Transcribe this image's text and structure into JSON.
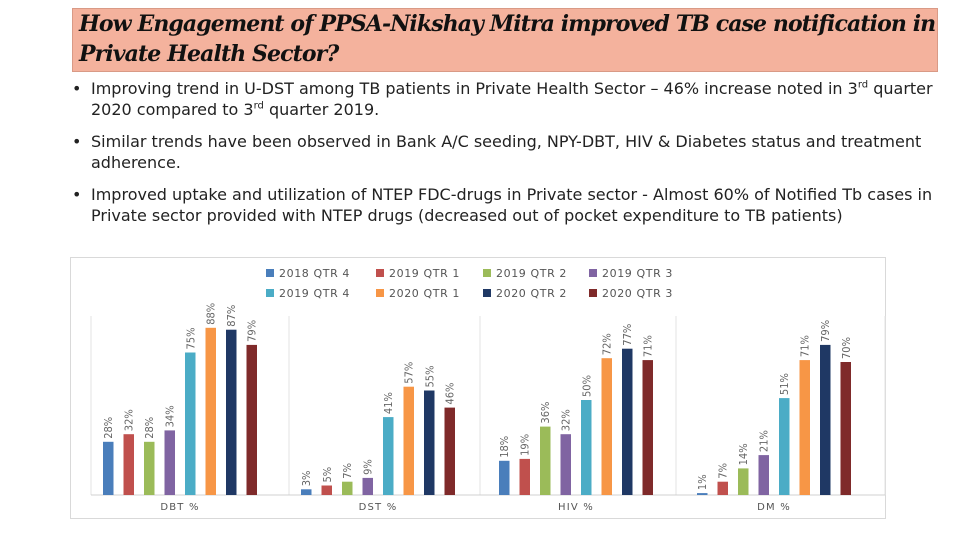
{
  "slide": {
    "title_line1": "How Engagement of PPSA-Nikshay Mitra improved TB case notification in",
    "title_line2": "Private Health Sector?",
    "bullets": [
      {
        "a": "Improving trend in U-DST among TB patients in Private Health Sector – 46% increase noted in 3",
        "sup1": "rd",
        "b": " quarter 2020 compared to 3",
        "sup2": "rd",
        "c": " quarter 2019."
      },
      {
        "text": "Similar trends have been observed in Bank A/C seeding, NPY-DBT, HIV & Diabetes status and treatment adherence."
      },
      {
        "text": "Improved uptake and utilization of NTEP FDC-drugs in Private sector - Almost 60% of Notified Tb cases in Private sector provided with NTEP drugs (decreased out of pocket expenditure to TB patients)"
      }
    ]
  },
  "chart_data": {
    "type": "bar",
    "categories": [
      "DBT %",
      "DST %",
      "HIV %",
      "DM %"
    ],
    "ylim": [
      0,
      100
    ],
    "legend_position": "top",
    "grid": false,
    "series": [
      {
        "name": "2018 QTR 4",
        "color": "#4a7ebb",
        "values": [
          28,
          3,
          18,
          1
        ],
        "labels": [
          "28%",
          "3%",
          "18%",
          "1%"
        ]
      },
      {
        "name": "2019 QTR 1",
        "color": "#c0504d",
        "values": [
          32,
          5,
          19,
          7
        ],
        "labels": [
          "32%",
          "5%",
          "19%",
          "7%"
        ]
      },
      {
        "name": "2019 QTR 2",
        "color": "#9bbb59",
        "values": [
          28,
          7,
          36,
          14
        ],
        "labels": [
          "28%",
          "7%",
          "36%",
          "14%"
        ]
      },
      {
        "name": "2019 QTR 3",
        "color": "#8064a2",
        "values": [
          34,
          9,
          32,
          21
        ],
        "labels": [
          "34%",
          "9%",
          "32%",
          "21%"
        ]
      },
      {
        "name": "2019 QTR 4",
        "color": "#4bacc6",
        "values": [
          75,
          41,
          50,
          51
        ],
        "labels": [
          "75%",
          "41%",
          "50%",
          "51%"
        ]
      },
      {
        "name": "2020 QTR 1",
        "color": "#f79646",
        "values": [
          88,
          57,
          72,
          71
        ],
        "labels": [
          "88%",
          "57%",
          "72%",
          "71%"
        ]
      },
      {
        "name": "2020 QTR 2",
        "color": "#1f3864",
        "values": [
          87,
          55,
          77,
          79
        ],
        "labels": [
          "87%",
          "55%",
          "77%",
          "79%"
        ]
      },
      {
        "name": "2020 QTR 3",
        "color": "#7f2a2a",
        "values": [
          79,
          46,
          71,
          70
        ],
        "labels": [
          "79%",
          "46%",
          "71%",
          "70%"
        ]
      }
    ]
  }
}
